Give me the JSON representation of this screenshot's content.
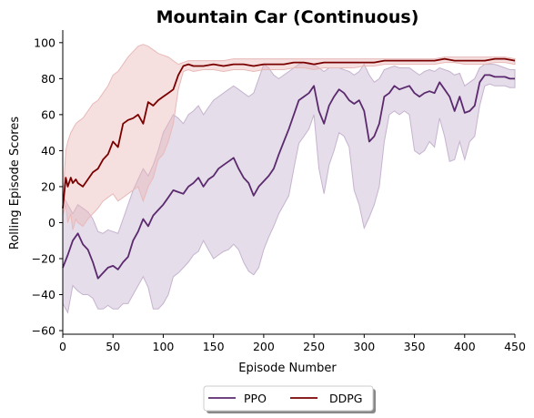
{
  "chart_data": {
    "type": "line",
    "title": "Mountain Car (Continuous)",
    "xlabel": "Episode Number",
    "ylabel": "Rolling Episode Scores",
    "xlim": [
      0,
      450
    ],
    "ylim": [
      -62,
      107
    ],
    "xticks": [
      0,
      50,
      100,
      150,
      200,
      250,
      300,
      350,
      400,
      450
    ],
    "yticks": [
      -60,
      -40,
      -20,
      0,
      20,
      40,
      60,
      80,
      100
    ],
    "legend_position": "bottom-center",
    "series": [
      {
        "name": "PPO",
        "color": "#5b2a6e",
        "band_color": "#c6b3cf",
        "x": [
          0,
          5,
          10,
          15,
          20,
          25,
          30,
          35,
          40,
          45,
          50,
          55,
          60,
          65,
          70,
          75,
          80,
          85,
          90,
          95,
          100,
          105,
          110,
          115,
          120,
          125,
          130,
          135,
          140,
          145,
          150,
          155,
          160,
          165,
          170,
          175,
          180,
          185,
          190,
          195,
          200,
          205,
          210,
          215,
          220,
          225,
          230,
          235,
          240,
          245,
          250,
          255,
          260,
          265,
          270,
          275,
          280,
          285,
          290,
          295,
          300,
          305,
          310,
          315,
          320,
          325,
          330,
          335,
          340,
          345,
          350,
          355,
          360,
          365,
          370,
          375,
          380,
          385,
          390,
          395,
          400,
          405,
          410,
          415,
          420,
          425,
          430,
          435,
          440,
          445,
          450
        ],
        "mean": [
          -25,
          -18,
          -10,
          -6,
          -12,
          -15,
          -22,
          -31,
          -28,
          -25,
          -24,
          -26,
          -22,
          -19,
          -10,
          -5,
          2,
          -2,
          4,
          7,
          10,
          14,
          18,
          17,
          16,
          20,
          22,
          25,
          20,
          24,
          26,
          30,
          32,
          34,
          36,
          30,
          25,
          22,
          15,
          20,
          23,
          26,
          30,
          38,
          45,
          52,
          60,
          68,
          70,
          72,
          76,
          62,
          55,
          65,
          70,
          74,
          72,
          68,
          66,
          68,
          62,
          45,
          48,
          55,
          70,
          72,
          76,
          74,
          75,
          76,
          72,
          70,
          72,
          73,
          72,
          78,
          74,
          70,
          62,
          70,
          61,
          62,
          65,
          78,
          82,
          82,
          81,
          81,
          81,
          80,
          80
        ],
        "upper": [
          15,
          10,
          5,
          10,
          8,
          6,
          2,
          -5,
          -6,
          -4,
          -5,
          -6,
          2,
          10,
          18,
          24,
          30,
          26,
          32,
          40,
          50,
          55,
          60,
          58,
          55,
          60,
          62,
          65,
          60,
          64,
          68,
          70,
          72,
          74,
          76,
          74,
          72,
          70,
          72,
          80,
          88,
          86,
          82,
          80,
          82,
          84,
          86,
          88,
          89,
          89,
          88,
          86,
          84,
          86,
          86,
          86,
          85,
          84,
          82,
          84,
          88,
          82,
          78,
          80,
          85,
          86,
          87,
          86,
          86,
          86,
          84,
          82,
          84,
          85,
          84,
          86,
          85,
          84,
          82,
          83,
          76,
          78,
          80,
          86,
          88,
          88,
          88,
          87,
          86,
          85,
          85
        ],
        "lower": [
          -45,
          -50,
          -35,
          -38,
          -40,
          -40,
          -42,
          -48,
          -48,
          -46,
          -48,
          -48,
          -45,
          -45,
          -40,
          -35,
          -30,
          -36,
          -48,
          -48,
          -45,
          -40,
          -30,
          -28,
          -25,
          -22,
          -18,
          -16,
          -10,
          -15,
          -20,
          -18,
          -16,
          -15,
          -12,
          -15,
          -22,
          -27,
          -29,
          -25,
          -15,
          -8,
          -2,
          5,
          10,
          15,
          30,
          44,
          48,
          52,
          60,
          30,
          16,
          32,
          40,
          50,
          48,
          42,
          18,
          10,
          -3,
          3,
          10,
          20,
          45,
          60,
          62,
          60,
          62,
          60,
          40,
          38,
          40,
          45,
          42,
          58,
          48,
          34,
          35,
          45,
          35,
          45,
          48,
          65,
          76,
          77,
          76,
          76,
          76,
          75,
          75
        ]
      },
      {
        "name": "DDPG",
        "color": "#7a0000",
        "band_color": "#e8b9b9",
        "x": [
          0,
          3,
          5,
          8,
          10,
          13,
          15,
          20,
          25,
          30,
          35,
          40,
          45,
          50,
          55,
          60,
          65,
          70,
          75,
          80,
          85,
          90,
          95,
          100,
          105,
          110,
          115,
          120,
          125,
          130,
          140,
          150,
          160,
          170,
          180,
          190,
          200,
          210,
          220,
          230,
          240,
          250,
          260,
          270,
          280,
          290,
          300,
          310,
          320,
          330,
          340,
          350,
          360,
          370,
          380,
          390,
          400,
          410,
          420,
          430,
          440,
          450
        ],
        "mean": [
          8,
          25,
          20,
          25,
          22,
          24,
          22,
          20,
          24,
          28,
          30,
          35,
          38,
          45,
          42,
          55,
          57,
          58,
          60,
          55,
          67,
          65,
          68,
          70,
          72,
          74,
          82,
          87,
          88,
          87,
          87,
          88,
          87,
          88,
          88,
          87,
          88,
          88,
          88,
          89,
          89,
          88,
          89,
          89,
          89,
          89,
          89,
          89,
          90,
          90,
          90,
          90,
          90,
          90,
          91,
          90,
          90,
          90,
          90,
          91,
          91,
          90
        ],
        "upper": [
          12,
          40,
          45,
          50,
          52,
          55,
          56,
          58,
          62,
          66,
          68,
          72,
          76,
          82,
          84,
          88,
          92,
          95,
          98,
          99,
          98,
          96,
          94,
          93,
          92,
          90,
          88,
          89,
          90,
          90,
          90,
          90,
          90,
          91,
          91,
          91,
          91,
          91,
          91,
          91,
          91,
          91,
          91,
          91,
          91,
          91,
          91,
          91,
          91,
          91,
          91,
          91,
          91,
          91,
          92,
          92,
          92,
          92,
          92,
          92,
          92,
          91
        ],
        "lower": [
          4,
          10,
          0,
          5,
          -4,
          2,
          0,
          -2,
          2,
          5,
          8,
          12,
          14,
          16,
          12,
          14,
          16,
          18,
          20,
          12,
          20,
          25,
          35,
          38,
          45,
          55,
          74,
          84,
          85,
          84,
          85,
          85,
          84,
          85,
          85,
          84,
          85,
          85,
          85,
          86,
          86,
          85,
          86,
          86,
          86,
          86,
          87,
          87,
          88,
          88,
          88,
          88,
          88,
          88,
          89,
          89,
          88,
          88,
          88,
          89,
          89,
          88
        ]
      }
    ]
  }
}
